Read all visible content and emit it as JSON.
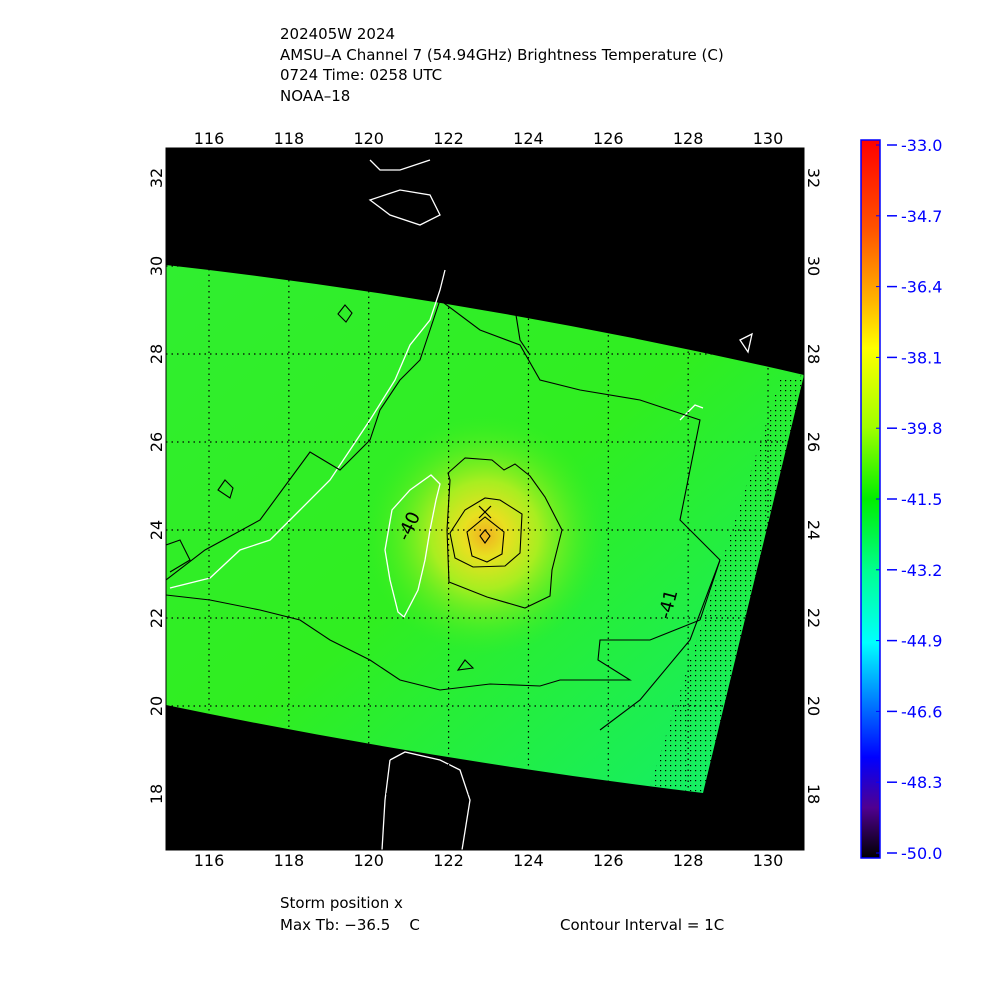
{
  "title": {
    "line1": "202405W 2024",
    "line2": "AMSU–A Channel 7 (54.94GHz) Brightness Temperature (C)",
    "line3": "0724 Time: 0258 UTC",
    "line4": "NOAA–18"
  },
  "map": {
    "lon_ticks": [
      "116",
      "118",
      "120",
      "122",
      "124",
      "126",
      "128",
      "130"
    ],
    "lat_ticks": [
      "18",
      "20",
      "22",
      "24",
      "26",
      "28",
      "30",
      "32"
    ],
    "contour_labels": [
      "-40",
      "-41"
    ],
    "storm_marker": "x",
    "colors": {
      "background": "#000000",
      "field": "#22ee22",
      "warm_core": "#f0c020",
      "contour": "#000000",
      "coast": "#ffffff",
      "grid": "#000000"
    }
  },
  "colorbar": {
    "labels": [
      "-33.0",
      "-34.7",
      "-36.4",
      "-38.1",
      "-39.8",
      "-41.5",
      "-43.2",
      "-44.9",
      "-46.6",
      "-48.3",
      "-50.0"
    ],
    "range": [
      -50.0,
      -33.0
    ],
    "label_color": "#0000ff"
  },
  "footer": {
    "storm_position": "Storm position x",
    "max_tb": "Max Tb: −36.5    C",
    "contour_interval": "Contour Interval = 1C"
  }
}
